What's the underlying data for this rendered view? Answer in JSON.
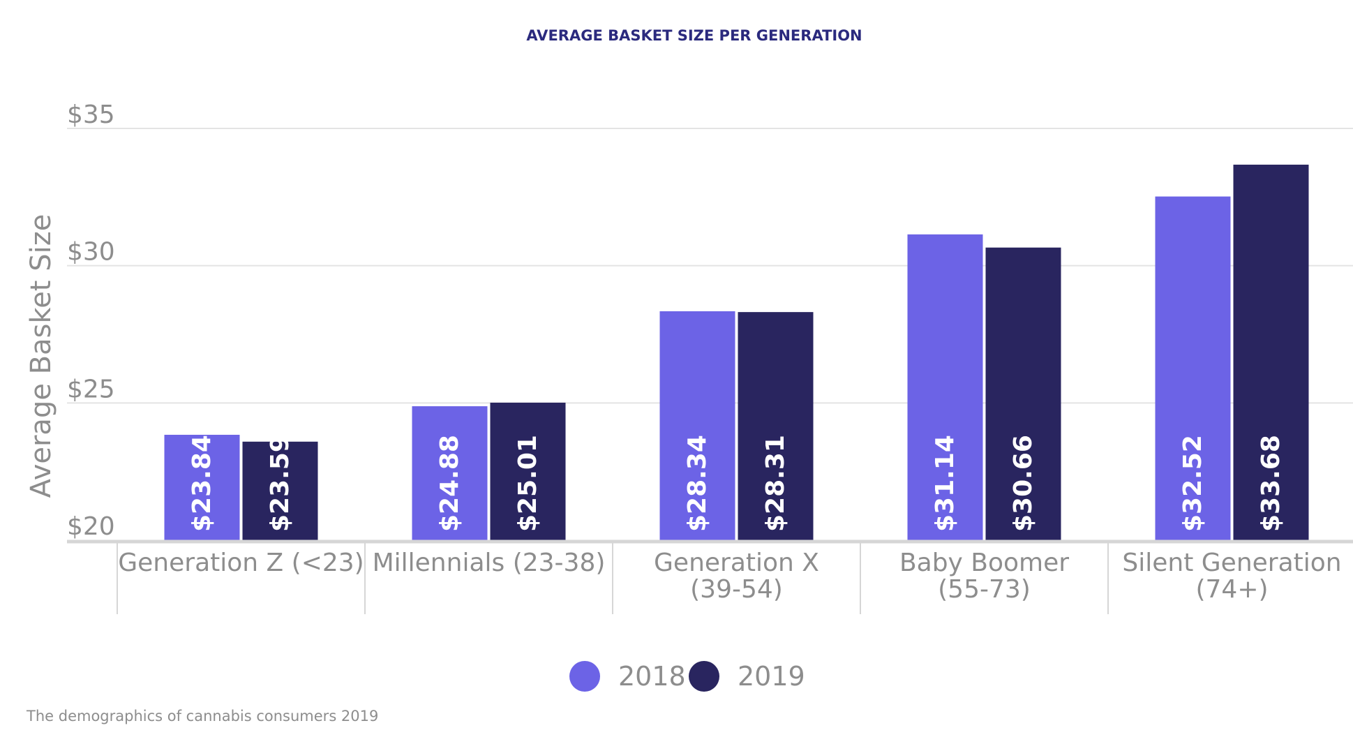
{
  "chart_data": {
    "type": "bar",
    "title": "AVERAGE BASKET SIZE PER GENERATION",
    "ylabel": "Average Basket Size",
    "xlabel": "",
    "ylim": [
      20,
      35
    ],
    "yticks": [
      20,
      25,
      30,
      35
    ],
    "ytick_labels": [
      "$20",
      "$25",
      "$30",
      "$35"
    ],
    "categories": [
      [
        "Generation Z (<23)"
      ],
      [
        "Millennials (23-38)"
      ],
      [
        "Generation X",
        "(39-54)"
      ],
      [
        "Baby Boomer",
        "(55-73)"
      ],
      [
        "Silent Generation",
        "(74+)"
      ]
    ],
    "series": [
      {
        "name": "2018",
        "color": "#6c63e6",
        "values": [
          23.84,
          24.88,
          28.34,
          31.14,
          32.52
        ],
        "labels": [
          "$23.84",
          "$24.88",
          "$28.34",
          "$31.14",
          "$32.52"
        ]
      },
      {
        "name": "2019",
        "color": "#29255f",
        "values": [
          23.59,
          25.01,
          28.31,
          30.66,
          33.68
        ],
        "labels": [
          "$23.59",
          "$25.01",
          "$28.31",
          "$30.66",
          "$33.68"
        ]
      }
    ],
    "grid": true,
    "legend_position": "bottom-center"
  },
  "source_note": "The demographics of cannabis consumers 2019"
}
